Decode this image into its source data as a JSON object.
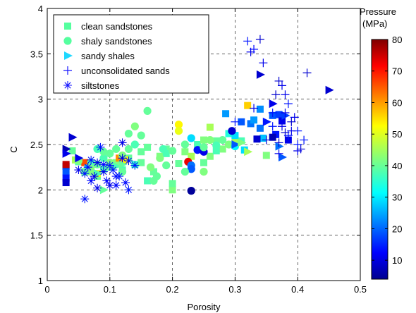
{
  "chart_data": {
    "type": "scatter",
    "title": "",
    "xlabel": "Porosity",
    "ylabel": "C",
    "xlim": [
      0,
      0.5
    ],
    "ylim": [
      1,
      4
    ],
    "xticks": [
      0,
      0.1,
      0.2,
      0.3,
      0.4,
      0.5
    ],
    "xtick_labels": [
      "0",
      "0.1",
      "0.2",
      "0.3",
      "0.4",
      "0.5"
    ],
    "yticks": [
      1,
      1.5,
      2,
      2.5,
      3,
      3.5,
      4
    ],
    "ytick_labels": [
      "1",
      "1.5",
      "2",
      "2.5",
      "3",
      "3.5",
      "4"
    ],
    "grid": true,
    "legend_position": "top-left",
    "colorbar": {
      "title_line1": "Pressure",
      "title_line2": "(MPa)",
      "range": [
        4,
        80
      ],
      "ticks": [
        10,
        20,
        30,
        40,
        50,
        60,
        70,
        80
      ],
      "tick_labels": [
        "10",
        "20",
        "30",
        "40",
        "50",
        "60",
        "70",
        "80"
      ],
      "colormap": "jet"
    },
    "series": [
      {
        "name": "clean sandstones",
        "marker": "square",
        "points": [
          [
            0.03,
            2.26,
            8
          ],
          [
            0.03,
            2.2,
            20
          ],
          [
            0.03,
            2.13,
            15
          ],
          [
            0.03,
            2.08,
            10
          ],
          [
            0.03,
            2.28,
            75
          ],
          [
            0.04,
            2.43,
            40
          ],
          [
            0.045,
            2.33,
            45
          ],
          [
            0.05,
            2.31,
            38
          ],
          [
            0.06,
            2.3,
            65
          ],
          [
            0.065,
            2.24,
            30
          ],
          [
            0.07,
            2.2,
            42
          ],
          [
            0.08,
            2.15,
            40
          ],
          [
            0.09,
            2.23,
            38
          ],
          [
            0.1,
            2.25,
            40
          ],
          [
            0.11,
            2.3,
            42
          ],
          [
            0.12,
            2.22,
            38
          ],
          [
            0.13,
            2.35,
            40
          ],
          [
            0.14,
            2.28,
            36
          ],
          [
            0.15,
            2.42,
            40
          ],
          [
            0.16,
            2.1,
            38
          ],
          [
            0.17,
            2.2,
            40
          ],
          [
            0.18,
            2.37,
            42
          ],
          [
            0.19,
            2.45,
            40
          ],
          [
            0.2,
            2.0,
            42
          ],
          [
            0.2,
            2.07,
            40
          ],
          [
            0.21,
            2.29,
            40
          ],
          [
            0.22,
            2.42,
            42
          ],
          [
            0.23,
            2.37,
            45
          ],
          [
            0.24,
            2.5,
            38
          ],
          [
            0.25,
            2.55,
            42
          ],
          [
            0.26,
            2.69,
            45
          ],
          [
            0.27,
            2.54,
            40
          ],
          [
            0.28,
            2.45,
            42
          ],
          [
            0.29,
            2.62,
            35
          ],
          [
            0.3,
            2.55,
            45
          ],
          [
            0.31,
            2.54,
            38
          ],
          [
            0.315,
            2.44,
            30
          ],
          [
            0.32,
            2.93,
            55
          ],
          [
            0.325,
            2.73,
            22
          ],
          [
            0.33,
            2.77,
            25
          ],
          [
            0.34,
            2.89,
            24
          ],
          [
            0.34,
            2.68,
            22
          ],
          [
            0.345,
            2.57,
            28
          ],
          [
            0.35,
            2.38,
            42
          ],
          [
            0.36,
            2.82,
            20
          ],
          [
            0.365,
            2.61,
            15
          ],
          [
            0.37,
            2.83,
            18
          ],
          [
            0.375,
            2.76,
            12
          ],
          [
            0.385,
            2.55,
            12
          ],
          [
            0.285,
            2.84,
            25
          ],
          [
            0.3,
            2.6,
            30
          ],
          [
            0.31,
            2.75,
            20
          ],
          [
            0.335,
            2.56,
            10
          ],
          [
            0.36,
            2.58,
            8
          ],
          [
            0.25,
            2.3,
            40
          ],
          [
            0.26,
            2.37,
            42
          ],
          [
            0.27,
            2.43,
            38
          ],
          [
            0.15,
            2.3,
            40
          ],
          [
            0.19,
            2.4,
            38
          ],
          [
            0.16,
            2.47,
            40
          ],
          [
            0.125,
            2.33,
            52
          ],
          [
            0.115,
            2.35,
            60
          ],
          [
            0.08,
            2.18,
            48
          ]
        ]
      },
      {
        "name": "shaly sandstones",
        "marker": "circle",
        "points": [
          [
            0.05,
            2.32,
            42
          ],
          [
            0.06,
            2.2,
            40
          ],
          [
            0.07,
            2.3,
            38
          ],
          [
            0.08,
            2.28,
            40
          ],
          [
            0.09,
            2.35,
            38
          ],
          [
            0.1,
            2.4,
            40
          ],
          [
            0.11,
            2.45,
            40
          ],
          [
            0.12,
            2.38,
            42
          ],
          [
            0.13,
            2.45,
            40
          ],
          [
            0.14,
            2.5,
            38
          ],
          [
            0.15,
            2.6,
            40
          ],
          [
            0.16,
            2.87,
            40
          ],
          [
            0.165,
            2.25,
            42
          ],
          [
            0.17,
            2.1,
            40
          ],
          [
            0.175,
            2.15,
            40
          ],
          [
            0.18,
            2.35,
            42
          ],
          [
            0.185,
            2.45,
            38
          ],
          [
            0.19,
            2.27,
            40
          ],
          [
            0.21,
            2.72,
            52
          ],
          [
            0.21,
            2.65,
            50
          ],
          [
            0.22,
            2.5,
            40
          ],
          [
            0.225,
            2.31,
            72
          ],
          [
            0.23,
            2.27,
            22
          ],
          [
            0.23,
            2.23,
            20
          ],
          [
            0.23,
            2.57,
            30
          ],
          [
            0.23,
            1.99,
            6
          ],
          [
            0.24,
            2.44,
            15
          ],
          [
            0.25,
            2.42,
            12
          ],
          [
            0.25,
            2.47,
            40
          ],
          [
            0.26,
            2.55,
            42
          ],
          [
            0.27,
            2.49,
            38
          ],
          [
            0.28,
            2.55,
            40
          ],
          [
            0.29,
            2.5,
            42
          ],
          [
            0.295,
            2.65,
            10
          ],
          [
            0.3,
            2.48,
            32
          ],
          [
            0.14,
            2.7,
            42
          ],
          [
            0.13,
            2.62,
            40
          ],
          [
            0.1,
            2.3,
            42
          ],
          [
            0.09,
            2.42,
            40
          ],
          [
            0.08,
            2.45,
            38
          ],
          [
            0.12,
            2.2,
            40
          ],
          [
            0.2,
            2.43,
            40
          ],
          [
            0.25,
            2.2,
            42
          ],
          [
            0.22,
            2.2,
            40
          ]
        ]
      },
      {
        "name": "sandy shales",
        "marker": "triangle",
        "points": [
          [
            0.03,
            2.45,
            8
          ],
          [
            0.04,
            2.58,
            10
          ],
          [
            0.05,
            2.35,
            12
          ],
          [
            0.06,
            2.2,
            40
          ],
          [
            0.07,
            2.25,
            42
          ],
          [
            0.08,
            2.18,
            38
          ],
          [
            0.09,
            2.0,
            40
          ],
          [
            0.11,
            2.26,
            38
          ],
          [
            0.12,
            2.28,
            40
          ],
          [
            0.3,
            2.5,
            20
          ],
          [
            0.31,
            2.52,
            42
          ],
          [
            0.32,
            2.42,
            45
          ],
          [
            0.34,
            3.27,
            10
          ],
          [
            0.35,
            2.75,
            15
          ],
          [
            0.36,
            2.95,
            12
          ],
          [
            0.37,
            2.48,
            22
          ],
          [
            0.375,
            2.36,
            20
          ],
          [
            0.38,
            2.82,
            18
          ],
          [
            0.45,
            3.1,
            10
          ],
          [
            0.03,
            2.4,
            12
          ]
        ]
      },
      {
        "name": "unconsolidated sands",
        "marker": "plus",
        "points": [
          [
            0.32,
            3.64,
            15
          ],
          [
            0.325,
            3.52,
            12
          ],
          [
            0.33,
            3.55,
            14
          ],
          [
            0.34,
            3.66,
            10
          ],
          [
            0.345,
            3.4,
            12
          ],
          [
            0.37,
            3.2,
            10
          ],
          [
            0.375,
            3.15,
            12
          ],
          [
            0.36,
            2.85,
            15
          ],
          [
            0.365,
            3.05,
            10
          ],
          [
            0.38,
            3.05,
            12
          ],
          [
            0.385,
            2.95,
            15
          ],
          [
            0.39,
            2.75,
            10
          ],
          [
            0.395,
            2.8,
            12
          ],
          [
            0.4,
            2.65,
            15
          ],
          [
            0.38,
            2.63,
            10
          ],
          [
            0.375,
            2.7,
            12
          ],
          [
            0.385,
            2.6,
            15
          ],
          [
            0.37,
            2.52,
            10
          ],
          [
            0.39,
            2.65,
            12
          ],
          [
            0.41,
            2.55,
            15
          ],
          [
            0.405,
            2.45,
            10
          ],
          [
            0.4,
            2.43,
            12
          ],
          [
            0.415,
            3.29,
            10
          ],
          [
            0.3,
            2.75,
            15
          ],
          [
            0.33,
            2.9,
            12
          ],
          [
            0.35,
            2.55,
            10
          ],
          [
            0.36,
            2.7,
            15
          ],
          [
            0.37,
            2.4,
            12
          ],
          [
            0.4,
            2.5,
            15
          ],
          [
            0.38,
            2.85,
            12
          ]
        ]
      },
      {
        "name": "siltstones",
        "marker": "asterisk",
        "points": [
          [
            0.05,
            2.22,
            12
          ],
          [
            0.06,
            1.9,
            15
          ],
          [
            0.065,
            2.25,
            14
          ],
          [
            0.07,
            2.33,
            15
          ],
          [
            0.08,
            2.3,
            12
          ],
          [
            0.085,
            2.47,
            15
          ],
          [
            0.09,
            2.28,
            14
          ],
          [
            0.1,
            2.27,
            15
          ],
          [
            0.1,
            2.05,
            12
          ],
          [
            0.11,
            2.15,
            14
          ],
          [
            0.115,
            2.15,
            15
          ],
          [
            0.12,
            2.52,
            12
          ],
          [
            0.125,
            2.08,
            14
          ],
          [
            0.13,
            2.0,
            15
          ],
          [
            0.09,
            2.2,
            12
          ],
          [
            0.095,
            2.1,
            14
          ],
          [
            0.105,
            2.22,
            15
          ],
          [
            0.075,
            2.15,
            12
          ],
          [
            0.13,
            2.32,
            14
          ],
          [
            0.14,
            2.27,
            15
          ],
          [
            0.12,
            2.35,
            12
          ],
          [
            0.07,
            2.1,
            14
          ],
          [
            0.06,
            2.18,
            15
          ],
          [
            0.08,
            2.02,
            12
          ],
          [
            0.11,
            2.05,
            14
          ]
        ]
      }
    ]
  }
}
